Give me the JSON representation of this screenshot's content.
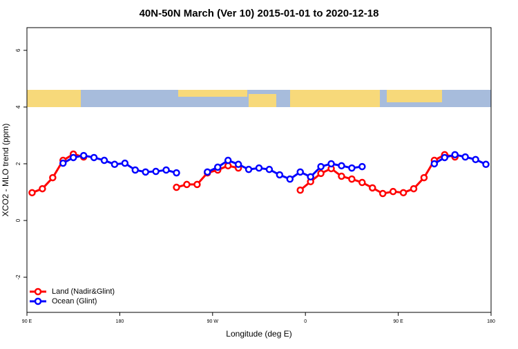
{
  "chart_data": {
    "type": "line",
    "title": "40N-50N March (Ver 10)   2015-01-01 to 2020-12-18",
    "x_label": "Longitude (deg E)",
    "y_label": "XCO2 - MLO trend (ppm)",
    "x": [
      95,
      105,
      115,
      125,
      135,
      145,
      155,
      165,
      175,
      185,
      195,
      205,
      215,
      225,
      235,
      245,
      255,
      265,
      275,
      285,
      295,
      305,
      315,
      325,
      335,
      345,
      355,
      365,
      375,
      385,
      395,
      405,
      415,
      425,
      435,
      445,
      455,
      465,
      475,
      485,
      495,
      505,
      515,
      525,
      535
    ],
    "series": [
      {
        "name": "Land (Nadir&Glint)",
        "color": "#ff0000",
        "values": [
          0.98,
          1.12,
          1.51,
          2.12,
          2.34,
          2.24,
          null,
          null,
          null,
          null,
          null,
          null,
          null,
          null,
          1.17,
          1.27,
          1.27,
          1.68,
          1.78,
          1.93,
          1.85,
          null,
          null,
          null,
          null,
          null,
          1.07,
          1.37,
          1.66,
          1.83,
          1.56,
          1.46,
          1.34,
          1.15,
          0.95,
          1.02,
          0.98,
          1.12,
          1.51,
          2.12,
          2.32,
          2.24,
          null,
          null,
          null
        ]
      },
      {
        "name": "Ocean (Glint)",
        "color": "#0000ff",
        "values": [
          null,
          null,
          null,
          2.02,
          2.22,
          2.29,
          2.22,
          2.12,
          1.98,
          2.02,
          1.78,
          1.71,
          1.73,
          1.78,
          1.68,
          null,
          null,
          1.71,
          1.88,
          2.12,
          1.98,
          1.8,
          1.85,
          1.8,
          1.61,
          1.46,
          1.71,
          1.54,
          1.9,
          2.0,
          1.93,
          1.85,
          1.9,
          null,
          null,
          null,
          null,
          null,
          null,
          2.0,
          2.22,
          2.32,
          2.24,
          2.15,
          1.98
        ]
      }
    ],
    "xlim": [
      90,
      540
    ],
    "xticks": [
      {
        "value": 90,
        "label": "90 E"
      },
      {
        "value": 180,
        "label": "180"
      },
      {
        "value": 270,
        "label": "90 W"
      },
      {
        "value": 360,
        "label": "0"
      },
      {
        "value": 450,
        "label": "90 E"
      },
      {
        "value": 540,
        "label": "180"
      }
    ],
    "ylim": [
      -3.24,
      6.8
    ],
    "yticks": [
      -2,
      0,
      2,
      4,
      6
    ],
    "legend": "bottom-left"
  }
}
